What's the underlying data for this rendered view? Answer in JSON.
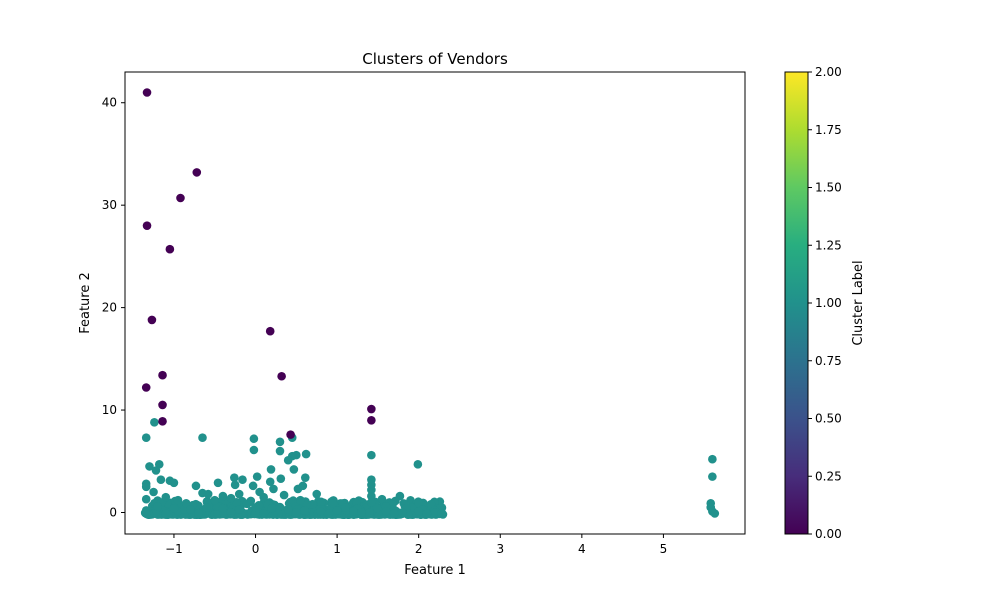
{
  "chart_data": {
    "type": "scatter",
    "title": "Clusters of Vendors",
    "xlabel": "Feature 1",
    "ylabel": "Feature 2",
    "xlim": [
      -1.6,
      6.0
    ],
    "ylim": [
      -2.1,
      43.0
    ],
    "x_ticks": [
      -1,
      0,
      1,
      2,
      3,
      4,
      5
    ],
    "y_ticks": [
      0,
      10,
      20,
      30,
      40
    ],
    "grid": false,
    "colorbar": {
      "label": "Cluster Label",
      "range": [
        0.0,
        2.0
      ],
      "ticks": [
        "0.00",
        "0.25",
        "0.50",
        "0.75",
        "1.00",
        "1.25",
        "1.50",
        "1.75",
        "2.00"
      ],
      "colormap": "viridis"
    },
    "series": [
      {
        "cluster": 0,
        "color": "#440154",
        "points": [
          [
            -1.33,
            41.0
          ],
          [
            -0.72,
            33.2
          ],
          [
            -0.92,
            30.7
          ],
          [
            -1.33,
            28.0
          ],
          [
            -1.05,
            25.7
          ],
          [
            -1.27,
            18.8
          ],
          [
            0.18,
            17.7
          ],
          [
            0.32,
            13.3
          ],
          [
            -1.14,
            13.4
          ],
          [
            -1.34,
            12.2
          ],
          [
            -1.14,
            10.5
          ],
          [
            -1.14,
            8.9
          ],
          [
            1.42,
            10.1
          ],
          [
            1.42,
            9.0
          ],
          [
            0.43,
            7.6
          ]
        ]
      },
      {
        "cluster": 1,
        "color": "#21918c",
        "points": [
          [
            -1.24,
            8.8
          ],
          [
            -1.34,
            7.3
          ],
          [
            -0.65,
            7.3
          ],
          [
            -0.02,
            7.2
          ],
          [
            0.3,
            6.9
          ],
          [
            -0.02,
            6.1
          ],
          [
            0.3,
            6.0
          ],
          [
            0.45,
            7.3
          ],
          [
            0.62,
            5.7
          ],
          [
            0.5,
            5.6
          ],
          [
            0.45,
            5.5
          ],
          [
            0.4,
            5.1
          ],
          [
            1.42,
            5.6
          ],
          [
            5.6,
            5.2
          ],
          [
            -1.3,
            4.5
          ],
          [
            -1.18,
            4.7
          ],
          [
            -1.22,
            4.1
          ],
          [
            1.99,
            4.7
          ],
          [
            5.6,
            3.5
          ],
          [
            0.47,
            4.2
          ],
          [
            0.19,
            4.2
          ],
          [
            0.02,
            3.5
          ],
          [
            -0.26,
            3.4
          ],
          [
            -0.16,
            3.2
          ],
          [
            0.18,
            3.0
          ],
          [
            0.31,
            3.3
          ],
          [
            0.61,
            3.4
          ],
          [
            -0.46,
            2.9
          ],
          [
            -0.25,
            2.7
          ],
          [
            -0.03,
            2.6
          ],
          [
            1.42,
            3.2
          ],
          [
            1.42,
            2.7
          ],
          [
            1.42,
            2.2
          ],
          [
            1.42,
            1.6
          ],
          [
            1.42,
            1.0
          ],
          [
            -1.34,
            2.8
          ],
          [
            -1.34,
            2.5
          ],
          [
            -1.16,
            3.2
          ],
          [
            -1.05,
            3.1
          ],
          [
            -1.0,
            2.9
          ],
          [
            -0.73,
            2.6
          ],
          [
            -0.65,
            1.9
          ],
          [
            -0.58,
            1.8
          ],
          [
            -0.4,
            1.6
          ],
          [
            -0.2,
            1.8
          ],
          [
            0.05,
            2.0
          ],
          [
            0.22,
            2.3
          ],
          [
            0.52,
            2.3
          ],
          [
            0.58,
            2.6
          ],
          [
            0.75,
            1.8
          ],
          [
            1.55,
            1.3
          ],
          [
            1.77,
            1.6
          ],
          [
            2.0,
            0.9
          ],
          [
            2.15,
            0.8
          ],
          [
            2.25,
            0.4
          ],
          [
            5.58,
            0.9
          ],
          [
            5.58,
            0.5
          ],
          [
            5.6,
            0.1
          ],
          [
            5.63,
            -0.1
          ],
          [
            -1.25,
            2.0
          ],
          [
            -1.1,
            1.5
          ],
          [
            -0.95,
            1.2
          ],
          [
            -0.85,
            0.9
          ],
          [
            -0.5,
            1.2
          ],
          [
            -0.3,
            1.4
          ],
          [
            0.1,
            1.5
          ],
          [
            0.35,
            1.7
          ],
          [
            0.55,
            1.2
          ],
          [
            0.95,
            0.9
          ],
          [
            1.1,
            0.5
          ],
          [
            1.25,
            0.4
          ],
          [
            1.6,
            0.6
          ],
          [
            1.85,
            0.4
          ],
          [
            2.05,
            0.3
          ],
          [
            2.2,
            0.2
          ],
          [
            -1.34,
            0.2
          ],
          [
            -1.34,
            0.0
          ],
          [
            -1.34,
            -0.1
          ],
          [
            -1.34,
            1.3
          ],
          [
            -1.2,
            0.6
          ],
          [
            -1.0,
            0.4
          ],
          [
            -0.8,
            0.3
          ],
          [
            -0.6,
            0.5
          ],
          [
            -0.4,
            0.4
          ],
          [
            -0.2,
            0.3
          ],
          [
            0.0,
            0.5
          ],
          [
            0.2,
            0.4
          ],
          [
            0.4,
            0.3
          ],
          [
            0.6,
            0.2
          ],
          [
            0.8,
            0.1
          ],
          [
            1.0,
            0.2
          ],
          [
            1.2,
            0.1
          ],
          [
            1.4,
            0.0
          ],
          [
            1.6,
            0.1
          ],
          [
            1.8,
            0.0
          ],
          [
            2.0,
            0.1
          ],
          [
            2.2,
            0.0
          ],
          [
            2.28,
            -0.1
          ],
          [
            -1.1,
            -0.1
          ],
          [
            -0.7,
            -0.1
          ],
          [
            -0.3,
            0.0
          ],
          [
            0.1,
            -0.1
          ],
          [
            0.5,
            0.0
          ],
          [
            0.9,
            -0.1
          ],
          [
            1.3,
            0.0
          ],
          [
            1.7,
            -0.1
          ],
          [
            2.1,
            -0.1
          ]
        ]
      }
    ],
    "dense_band": {
      "color": "#21918c",
      "x_range": [
        -1.36,
        2.3
      ],
      "y_range": [
        -0.2,
        1.2
      ]
    }
  }
}
